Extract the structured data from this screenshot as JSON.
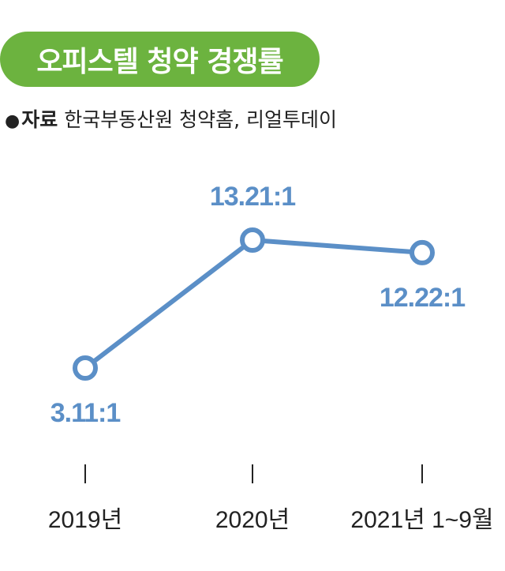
{
  "title": "오피스텔 청약 경쟁률",
  "source": {
    "bullet": "●",
    "label": "자료",
    "text": "한국부동산원 청약홈, 리얼투데이"
  },
  "colors": {
    "title_bg": "#6cb33f",
    "line": "#5b8fc7",
    "label": "#5b8fc7"
  },
  "chart_data": {
    "type": "line",
    "categories": [
      "2019년",
      "2020년",
      "2021년 1~9월"
    ],
    "series": [
      {
        "values": [
          3.11,
          13.21,
          12.22
        ]
      }
    ],
    "data_labels": [
      "3.11:1",
      "13.21:1",
      "12.22:1"
    ],
    "ylim": [
      0,
      15
    ],
    "grid": false,
    "xlabel": "",
    "ylabel": ""
  }
}
